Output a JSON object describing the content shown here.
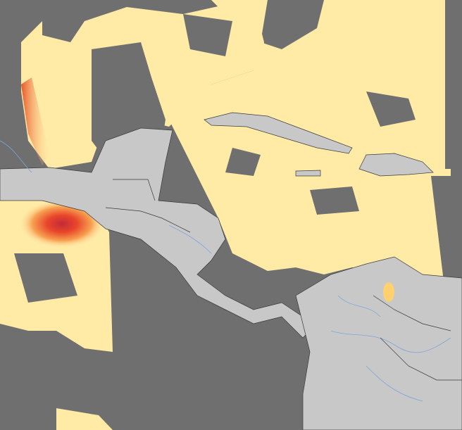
{
  "map": {
    "colors": {
      "no_data": "#6f6f6f",
      "land": "#c8c8c8",
      "borders": "#3a3a3a",
      "rivers": "#7fa6d6",
      "low_value": "#ffeaa6",
      "mid_value": "#f7b55a",
      "high_value": "#e8452a",
      "peak_value": "#c42a3a"
    }
  }
}
